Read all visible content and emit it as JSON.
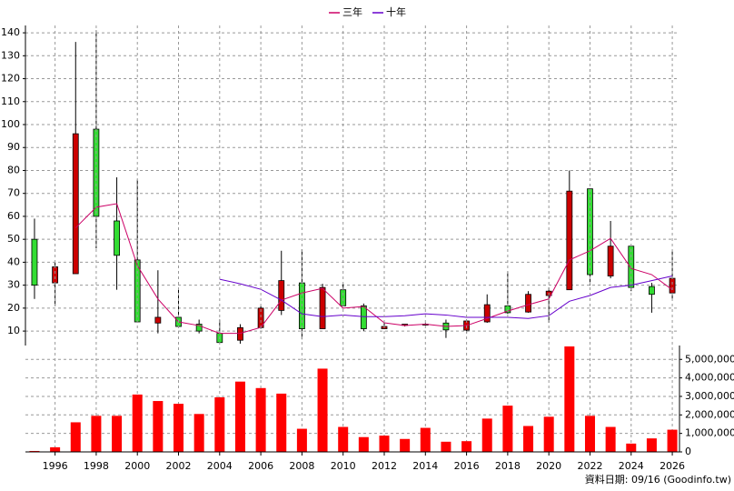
{
  "chart_data": [
    {
      "type": "candlestick",
      "x": [
        1995,
        1996,
        1997,
        1998,
        1999,
        2000,
        2001,
        2002,
        2003,
        2004,
        2005,
        2006,
        2007,
        2008,
        2009,
        2010,
        2011,
        2012,
        2013,
        2014,
        2015,
        2016,
        2017,
        2018,
        2019,
        2020,
        2021,
        2022,
        2023,
        2024,
        2025,
        2026
      ],
      "open": [
        50,
        31,
        35,
        98,
        58,
        41,
        13.5,
        16,
        13,
        9,
        6,
        11.5,
        19,
        31,
        11,
        28,
        21,
        11,
        12.5,
        12.8,
        13.5,
        10.4,
        14,
        21,
        18.3,
        25.5,
        28,
        72,
        34,
        47,
        29.4,
        26.6
      ],
      "high": [
        59,
        40,
        136,
        141,
        77,
        76,
        36.5,
        29,
        15,
        15,
        13,
        21,
        45,
        45.7,
        30.6,
        30.6,
        22,
        13.6,
        13,
        13.5,
        15,
        15,
        26,
        36,
        27.4,
        29,
        80,
        72,
        58,
        47,
        31,
        45
      ],
      "low": [
        24,
        21,
        35,
        46,
        28,
        14,
        9,
        11.6,
        9,
        5,
        4.5,
        11,
        17,
        6.4,
        11,
        21,
        10,
        11,
        12,
        12.5,
        7,
        9,
        13.6,
        17.5,
        18,
        13.6,
        28,
        30,
        33,
        27.4,
        18,
        24
      ],
      "close": [
        30,
        38,
        96,
        60,
        43,
        14,
        16,
        12,
        10,
        5,
        11.5,
        20,
        32,
        11,
        29,
        21,
        11,
        12,
        13,
        13,
        10.5,
        14.4,
        21.5,
        18,
        26,
        27.4,
        71,
        34.6,
        47,
        29,
        26,
        33
      ],
      "up_color": "#cc0000",
      "down_color": "#33dd33",
      "series": [
        {
          "name": "三年",
          "color": "#cc0066",
          "values": [
            null,
            null,
            55,
            64,
            65.5,
            38.5,
            24,
            14,
            12.4,
            9,
            9,
            11.6,
            23.5,
            26.6,
            28.6,
            20,
            20.7,
            13.6,
            12.4,
            13,
            12,
            12.4,
            15.5,
            18.7,
            21.5,
            24,
            41,
            45,
            50.4,
            37.3,
            34.6,
            28
          ]
        },
        {
          "name": "十年",
          "color": "#6600cc",
          "values": [
            null,
            null,
            null,
            null,
            null,
            null,
            null,
            null,
            null,
            32.6,
            30.6,
            28.2,
            23.5,
            17.5,
            16.3,
            17,
            16.3,
            16.3,
            16.7,
            17.5,
            17,
            16,
            16,
            16,
            15.5,
            16.7,
            23,
            25.5,
            29,
            30,
            32,
            34
          ]
        }
      ],
      "xlim": [
        1994.56,
        2026.35
      ],
      "ylim": [
        3.7,
        143.2
      ],
      "yticks": [
        10,
        20,
        30,
        40,
        50,
        60,
        70,
        80,
        90,
        100,
        110,
        120,
        130,
        140
      ],
      "grid": true,
      "legend": "top"
    },
    {
      "type": "bar",
      "x": [
        1995,
        1996,
        1997,
        1998,
        1999,
        2000,
        2001,
        2002,
        2003,
        2004,
        2005,
        2006,
        2007,
        2008,
        2009,
        2010,
        2011,
        2012,
        2013,
        2014,
        2015,
        2016,
        2017,
        2018,
        2019,
        2020,
        2021,
        2022,
        2023,
        2024,
        2025,
        2026
      ],
      "values": [
        50000,
        250000,
        1600000,
        1950000,
        1950000,
        3100000,
        2750000,
        2600000,
        2050000,
        2950000,
        3800000,
        3450000,
        3150000,
        1250000,
        4500000,
        1350000,
        800000,
        880000,
        700000,
        1300000,
        550000,
        580000,
        1800000,
        2500000,
        1400000,
        1900000,
        5700000,
        1950000,
        1350000,
        450000,
        730000,
        1200000
      ],
      "color": "#ff0000",
      "xlim": [
        1994.56,
        2026.35
      ],
      "xticks": [
        1996,
        1998,
        2000,
        2002,
        2004,
        2006,
        2008,
        2010,
        2012,
        2014,
        2016,
        2018,
        2020,
        2022,
        2024,
        2026
      ],
      "ylim": [
        0,
        5750000
      ],
      "yticks": [
        0,
        {
          "value": 1000000,
          "label": "1,000,000"
        },
        {
          "value": 2000000,
          "label": "2,000,000"
        },
        {
          "value": 3000000,
          "label": "3,000,000"
        },
        {
          "value": 4000000,
          "label": "4,000,000"
        },
        {
          "value": 5000000,
          "label": "5,000,000"
        }
      ],
      "grid": true,
      "note": "資料日期: 09/16 (Goodinfo.tw)"
    }
  ]
}
